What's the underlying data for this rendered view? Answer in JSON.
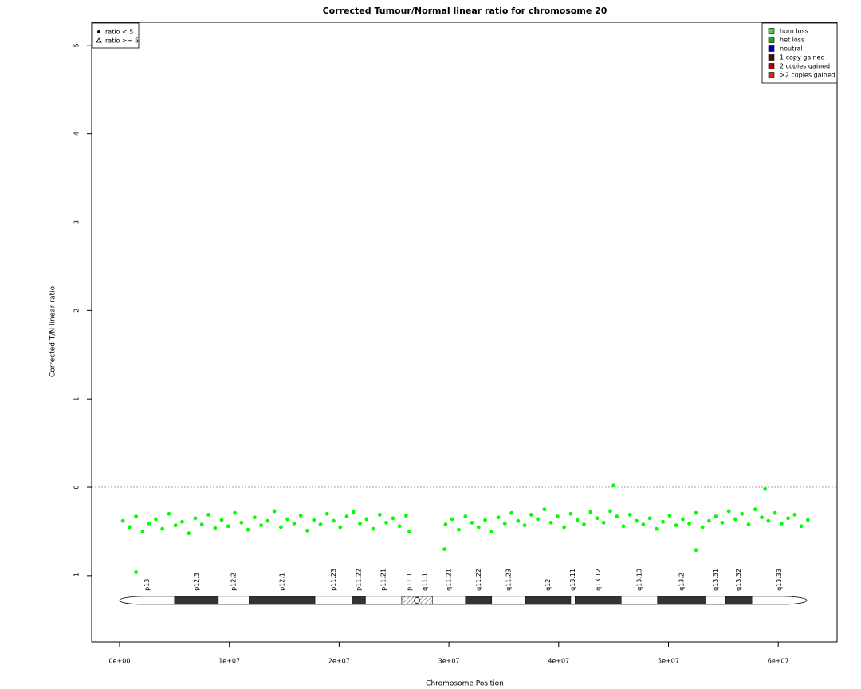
{
  "chart_data": {
    "type": "scatter",
    "title": "Corrected Tumour/Normal linear ratio for chromosome  20",
    "x_label": "Chromosome Position",
    "y_label": "Corrected T/N linear ratio",
    "xlim": [
      -2540000,
      65360000
    ],
    "ylim": [
      -1.75,
      5.26
    ],
    "xticks": [
      {
        "value": 0,
        "label": "0e+00"
      },
      {
        "value": 10000000,
        "label": "1e+07"
      },
      {
        "value": 20000000,
        "label": "2e+07"
      },
      {
        "value": 30000000,
        "label": "3e+07"
      },
      {
        "value": 40000000,
        "label": "4e+07"
      },
      {
        "value": 50000000,
        "label": "5e+07"
      },
      {
        "value": 60000000,
        "label": "6e+07"
      }
    ],
    "yticks": [
      -1,
      0,
      1,
      2,
      3,
      4,
      5
    ],
    "hline": 0,
    "series": [
      {
        "name": "ratio < 5",
        "color": "#00ff00",
        "x": [
          300000,
          900000,
          1500000,
          2100000,
          2700000,
          3300000,
          3900000,
          4500000,
          5100000,
          5700000,
          6300000,
          6900000,
          7500000,
          8100000,
          8700000,
          9300000,
          9900000,
          10500000,
          11100000,
          11700000,
          12300000,
          12900000,
          13500000,
          14100000,
          14700000,
          15300000,
          15900000,
          16500000,
          17100000,
          17700000,
          18300000,
          18900000,
          19500000,
          20100000,
          20700000,
          21300000,
          21900000,
          22500000,
          23100000,
          23700000,
          24300000,
          24900000,
          25500000,
          26100000,
          26400000,
          1500000,
          29700000,
          30300000,
          30900000,
          31500000,
          32100000,
          32700000,
          33300000,
          33900000,
          34500000,
          35100000,
          35700000,
          36300000,
          36900000,
          37500000,
          38100000,
          38700000,
          39300000,
          39900000,
          40500000,
          41100000,
          41700000,
          42300000,
          42900000,
          43500000,
          44100000,
          44700000,
          45300000,
          45900000,
          46500000,
          47100000,
          47700000,
          48300000,
          48900000,
          49500000,
          50100000,
          50700000,
          51300000,
          51900000,
          52500000,
          53100000,
          53700000,
          54300000,
          54900000,
          55500000,
          56100000,
          56700000,
          57300000,
          57900000,
          58500000,
          59100000,
          59700000,
          60300000,
          60900000,
          61500000,
          62100000,
          62700000,
          45000000,
          58800000,
          29600000,
          52500000
        ],
        "values": [
          -0.38,
          -0.45,
          -0.33,
          -0.5,
          -0.41,
          -0.36,
          -0.47,
          -0.3,
          -0.43,
          -0.39,
          -0.52,
          -0.35,
          -0.42,
          -0.31,
          -0.46,
          -0.37,
          -0.44,
          -0.29,
          -0.4,
          -0.48,
          -0.34,
          -0.43,
          -0.38,
          -0.27,
          -0.45,
          -0.36,
          -0.41,
          -0.32,
          -0.49,
          -0.37,
          -0.42,
          -0.3,
          -0.38,
          -0.45,
          -0.33,
          -0.28,
          -0.41,
          -0.36,
          -0.47,
          -0.31,
          -0.4,
          -0.35,
          -0.44,
          -0.32,
          -0.5,
          -0.96,
          -0.42,
          -0.36,
          -0.48,
          -0.33,
          -0.4,
          -0.45,
          -0.37,
          -0.5,
          -0.34,
          -0.41,
          -0.29,
          -0.38,
          -0.43,
          -0.31,
          -0.36,
          -0.25,
          -0.4,
          -0.33,
          -0.45,
          -0.3,
          -0.37,
          -0.42,
          -0.28,
          -0.35,
          -0.4,
          -0.27,
          -0.33,
          -0.44,
          -0.31,
          -0.38,
          -0.42,
          -0.35,
          -0.47,
          -0.39,
          -0.32,
          -0.43,
          -0.36,
          -0.41,
          -0.29,
          -0.45,
          -0.38,
          -0.33,
          -0.4,
          -0.27,
          -0.36,
          -0.3,
          -0.42,
          -0.25,
          -0.34,
          -0.38,
          -0.29,
          -0.41,
          -0.35,
          -0.31,
          -0.44,
          -0.37,
          0.02,
          -0.02,
          -0.7,
          -0.71
        ]
      }
    ],
    "point_legend": [
      {
        "label": "ratio < 5",
        "symbol": "circle"
      },
      {
        "label": "ratio >= 5",
        "symbol": "triangle"
      }
    ],
    "state_legend": [
      {
        "label": "hom loss",
        "color": "#33dd33"
      },
      {
        "label": "het loss",
        "color": "#11aa11"
      },
      {
        "label": "neutral",
        "color": "#0000aa"
      },
      {
        "label": "1 copy gained",
        "color": "#660000"
      },
      {
        "label": "2 copies gained",
        "color": "#aa0000"
      },
      {
        "label": ">2 copies gained",
        "color": "#dd2222"
      }
    ],
    "ideogram_y": -1.28,
    "bands": [
      {
        "name": "p13",
        "start": 0,
        "end": 5000000,
        "stain": "gneg"
      },
      {
        "name": "p12.3",
        "start": 5000000,
        "end": 9000000,
        "stain": "gpos"
      },
      {
        "name": "p12.2",
        "start": 9000000,
        "end": 11800000,
        "stain": "gneg"
      },
      {
        "name": "p12.1",
        "start": 11800000,
        "end": 17800000,
        "stain": "gpos"
      },
      {
        "name": "p11.23",
        "start": 17800000,
        "end": 21200000,
        "stain": "gneg"
      },
      {
        "name": "p11.22",
        "start": 21200000,
        "end": 22400000,
        "stain": "gpos"
      },
      {
        "name": "p11.21",
        "start": 22400000,
        "end": 25700000,
        "stain": "gneg"
      },
      {
        "name": "p11.1",
        "start": 25700000,
        "end": 27100000,
        "stain": "acen"
      },
      {
        "name": "q11.1",
        "start": 27100000,
        "end": 28500000,
        "stain": "acen"
      },
      {
        "name": "q11.21",
        "start": 28500000,
        "end": 31500000,
        "stain": "gneg"
      },
      {
        "name": "q11.22",
        "start": 31500000,
        "end": 33900000,
        "stain": "gpos"
      },
      {
        "name": "q11.23",
        "start": 33900000,
        "end": 37000000,
        "stain": "gneg"
      },
      {
        "name": "q12",
        "start": 37000000,
        "end": 41100000,
        "stain": "gpos"
      },
      {
        "name": "q13.11",
        "start": 41100000,
        "end": 41500000,
        "stain": "gneg"
      },
      {
        "name": "q13.12",
        "start": 41500000,
        "end": 45700000,
        "stain": "gpos"
      },
      {
        "name": "q13.13",
        "start": 45700000,
        "end": 49000000,
        "stain": "gneg"
      },
      {
        "name": "q13.2",
        "start": 49000000,
        "end": 53400000,
        "stain": "gpos"
      },
      {
        "name": "q13.31",
        "start": 53400000,
        "end": 55200000,
        "stain": "gneg"
      },
      {
        "name": "q13.32",
        "start": 55200000,
        "end": 57600000,
        "stain": "gpos"
      },
      {
        "name": "q13.33",
        "start": 57600000,
        "end": 62600000,
        "stain": "gneg"
      }
    ]
  }
}
